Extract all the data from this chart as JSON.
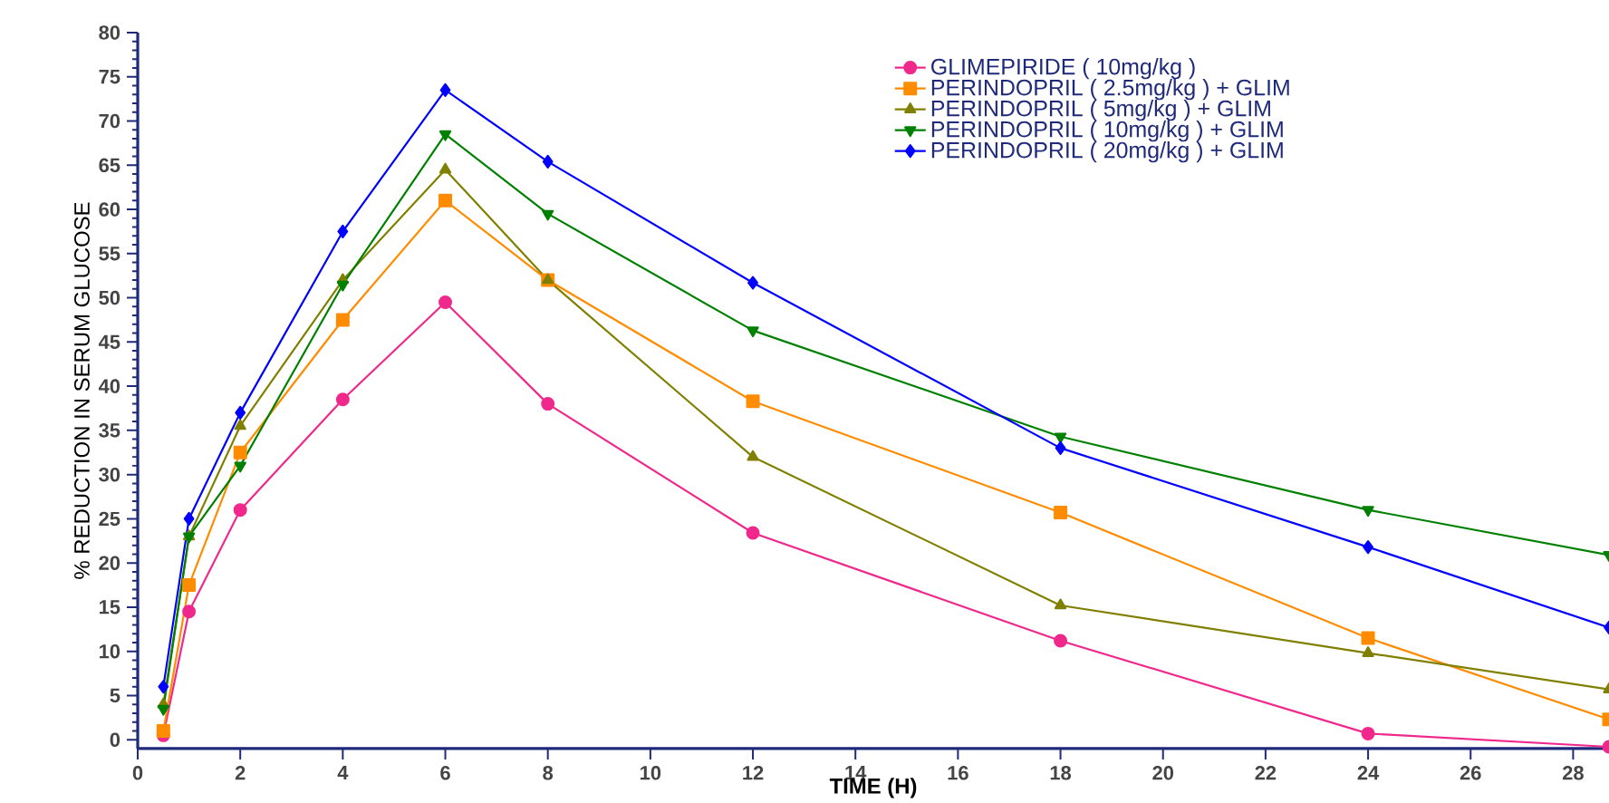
{
  "chart_data": {
    "type": "line",
    "xlabel": "TIME (H)",
    "ylabel": "% REDUCTION IN SERUM GLUCOSE",
    "x": [
      0.5,
      1,
      2,
      4,
      6,
      8,
      12,
      18,
      24,
      28.7
    ],
    "series": [
      {
        "name": "GLIMEPIRIDE ( 10mg/kg )",
        "color": "#f0288c",
        "marker": "circle",
        "values": [
          0.5,
          14.5,
          26,
          38.5,
          49.5,
          38,
          23.4,
          11.2,
          0.7,
          -0.8
        ]
      },
      {
        "name": "PERINDOPRIL ( 2.5mg/kg ) + GLIM",
        "color": "#ff8c00",
        "marker": "square",
        "values": [
          1,
          17.5,
          32.5,
          47.5,
          61,
          52,
          38.3,
          25.7,
          11.5,
          2.3
        ]
      },
      {
        "name": "PERINDOPRIL ( 5mg/kg ) + GLIM",
        "color": "#808000",
        "marker": "triangle",
        "values": [
          4,
          23,
          35.5,
          52,
          64.5,
          52,
          32,
          15.2,
          9.8,
          5.7
        ]
      },
      {
        "name": "PERINDOPRIL ( 10mg/kg ) + GLIM",
        "color": "#008000",
        "marker": "triangle down",
        "values": [
          3.5,
          23,
          31,
          51.5,
          68.5,
          59.5,
          46.3,
          34.3,
          26,
          20.9
        ]
      },
      {
        "name": "PERINDOPRIL ( 20mg/kg ) + GLIM",
        "color": "#0000ff",
        "marker": "diamond",
        "values": [
          6,
          25,
          37,
          57.5,
          73.5,
          65.4,
          51.7,
          33,
          21.8,
          12.7
        ]
      }
    ],
    "xlim": [
      0,
      28.7
    ],
    "ylim": [
      -1,
      80
    ],
    "xticks": [
      0,
      2,
      4,
      6,
      8,
      10,
      12,
      14,
      16,
      18,
      20,
      22,
      24,
      26,
      28
    ],
    "yticks": [
      0,
      5,
      10,
      15,
      20,
      25,
      30,
      35,
      40,
      45,
      50,
      55,
      60,
      65,
      70,
      75,
      80
    ],
    "grid": false,
    "legend": "top right",
    "line_style": "solid"
  }
}
